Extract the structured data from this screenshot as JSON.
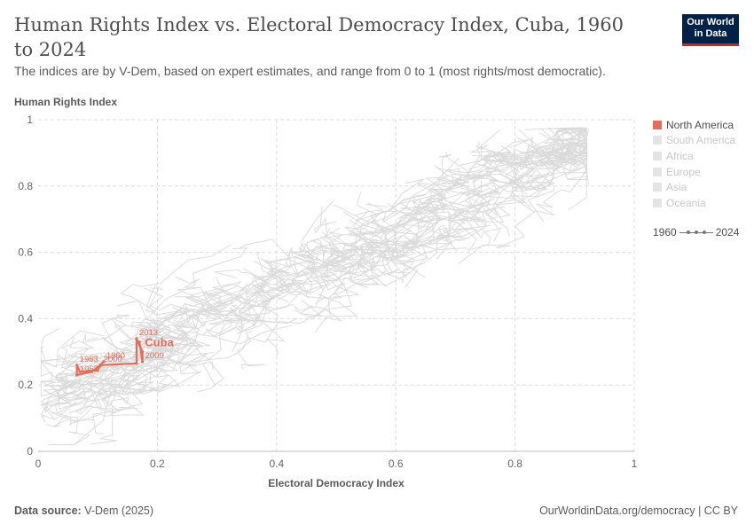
{
  "header": {
    "title": "Human Rights Index vs. Electoral Democracy Index, Cuba, 1960 to 2024",
    "subtitle": "The indices are by V-Dem, based on expert estimates, and range from 0 to 1 (most rights/most democratic).",
    "logo_line1": "Our World",
    "logo_line2": "in Data"
  },
  "legend": {
    "items": [
      {
        "label": "North America",
        "active": true
      },
      {
        "label": "South America",
        "active": false
      },
      {
        "label": "Africa",
        "active": false
      },
      {
        "label": "Europe",
        "active": false
      },
      {
        "label": "Asia",
        "active": false
      },
      {
        "label": "Oceania",
        "active": false
      }
    ],
    "timeline_start": "1960",
    "timeline_end": "2024"
  },
  "footer": {
    "source_label": "Data source:",
    "source_value": "V-Dem (2025)",
    "credit": "OurWorldinData.org/democracy | CC BY"
  },
  "colors": {
    "highlight": "#e56e5a",
    "background_lines": "#d9d9d9",
    "grid": "#dddddd"
  },
  "chart_data": {
    "type": "line",
    "title": "Human Rights Index vs. Electoral Democracy Index, Cuba, 1960 to 2024",
    "xlabel": "Electoral Democracy Index",
    "ylabel": "Human Rights Index",
    "xlim": [
      0,
      1
    ],
    "ylim": [
      0,
      1
    ],
    "xticks": [
      "0",
      "0.2",
      "0.4",
      "0.6",
      "0.8",
      "1"
    ],
    "yticks": [
      "0",
      "0.2",
      "0.4",
      "0.6",
      "0.8",
      "1"
    ],
    "grid": true,
    "legend_position": "right",
    "series": [
      {
        "name": "Cuba",
        "color": "#e56e5a",
        "points": [
          {
            "x": 0.11,
            "y": 0.27,
            "label": "1960"
          },
          {
            "x": 0.09,
            "y": 0.24,
            "label": ""
          },
          {
            "x": 0.065,
            "y": 0.23,
            "label": "1962"
          },
          {
            "x": 0.065,
            "y": 0.26,
            "label": "1963"
          },
          {
            "x": 0.07,
            "y": 0.24,
            "label": ""
          },
          {
            "x": 0.1,
            "y": 0.245,
            "label": ""
          },
          {
            "x": 0.105,
            "y": 0.26,
            "label": "2000"
          },
          {
            "x": 0.165,
            "y": 0.265,
            "label": ""
          },
          {
            "x": 0.165,
            "y": 0.34,
            "label": "2013"
          },
          {
            "x": 0.175,
            "y": 0.3,
            "label": ""
          },
          {
            "x": 0.175,
            "y": 0.27,
            "label": "2009"
          },
          {
            "x": 0.17,
            "y": 0.33,
            "label": ""
          }
        ],
        "end_label": "Cuba"
      }
    ]
  }
}
